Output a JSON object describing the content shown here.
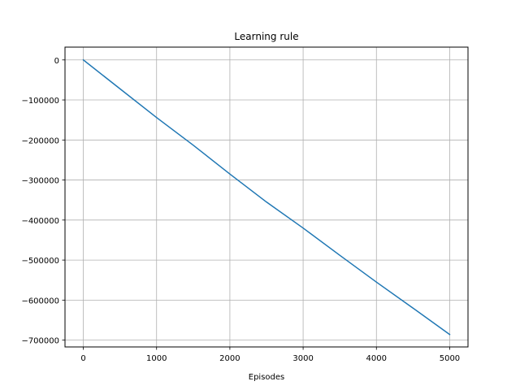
{
  "chart_data": {
    "type": "line",
    "title": "Learning rule",
    "xlabel": "Episodes",
    "ylabel": "",
    "xlim": [
      -250,
      5250
    ],
    "ylim": [
      -717000,
      32000
    ],
    "grid": true,
    "x_ticks": [
      0,
      1000,
      2000,
      3000,
      4000,
      5000
    ],
    "x_tick_labels": [
      "0",
      "1000",
      "2000",
      "3000",
      "4000",
      "5000"
    ],
    "y_ticks": [
      0,
      -100000,
      -200000,
      -300000,
      -400000,
      -500000,
      -600000,
      -700000
    ],
    "y_tick_labels": [
      "0",
      "−100000",
      "−200000",
      "−300000",
      "−400000",
      "−500000",
      "−600000",
      "−700000"
    ],
    "series": [
      {
        "color": "#1f77b4",
        "x": [
          0,
          500,
          1000,
          1500,
          2000,
          2500,
          3000,
          3500,
          4000,
          4500,
          5000
        ],
        "y": [
          0,
          -72000,
          -144000,
          -213000,
          -285000,
          -355000,
          -420000,
          -488000,
          -555000,
          -620000,
          -686000
        ]
      }
    ]
  }
}
